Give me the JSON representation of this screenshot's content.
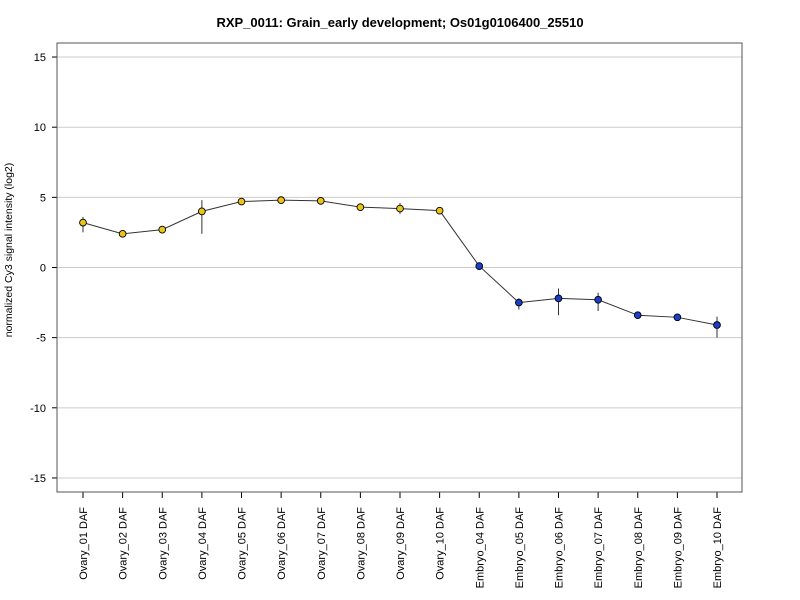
{
  "chart_data": {
    "type": "line",
    "title": "RXP_0011: Grain_early development; Os01g0106400_25510",
    "xlabel": "",
    "ylabel": "normalized Cy3 signal intensity (log2)",
    "ylim": [
      -16,
      16
    ],
    "yticks": [
      -15,
      -10,
      -5,
      0,
      5,
      10,
      15
    ],
    "ytick_labels": [
      "-15",
      "-10",
      "-5",
      "0",
      "5",
      "10",
      "15"
    ],
    "grid": "horizontal",
    "categories": [
      "Ovary_01 DAF",
      "Ovary_02 DAF",
      "Ovary_03 DAF",
      "Ovary_04 DAF",
      "Ovary_05 DAF",
      "Ovary_06 DAF",
      "Ovary_07 DAF",
      "Ovary_08 DAF",
      "Ovary_09 DAF",
      "Ovary_10 DAF",
      "Embryo_04 DAF",
      "Embryo_05 DAF",
      "Embryo_06 DAF",
      "Embryo_07 DAF",
      "Embryo_08 DAF",
      "Embryo_09 DAF",
      "Embryo_10 DAF"
    ],
    "values": [
      3.2,
      2.4,
      2.7,
      4.0,
      4.7,
      4.8,
      4.75,
      4.3,
      4.2,
      4.05,
      0.1,
      -2.5,
      -2.2,
      -2.3,
      -3.4,
      -3.55,
      -4.1
    ],
    "error_low": [
      2.5,
      2.3,
      2.6,
      2.4,
      4.6,
      4.7,
      4.65,
      4.2,
      3.8,
      3.95,
      0.0,
      -3.0,
      -3.4,
      -3.1,
      -3.5,
      -3.65,
      -5.0
    ],
    "error_high": [
      3.6,
      2.5,
      2.8,
      4.8,
      4.8,
      4.9,
      4.85,
      4.4,
      4.6,
      4.15,
      0.2,
      -2.2,
      -1.5,
      -1.8,
      -3.3,
      -3.45,
      -3.5
    ],
    "point_colors": [
      "#ecc416",
      "#ecc416",
      "#ecc416",
      "#ecc416",
      "#ecc416",
      "#ecc416",
      "#ecc416",
      "#ecc416",
      "#ecc416",
      "#ecc416",
      "#1a3fc8",
      "#1a3fc8",
      "#1a3fc8",
      "#1a3fc8",
      "#1a3fc8",
      "#1a3fc8",
      "#1a3fc8"
    ],
    "line_color": "#333333",
    "grid_color": "#cccccc"
  }
}
